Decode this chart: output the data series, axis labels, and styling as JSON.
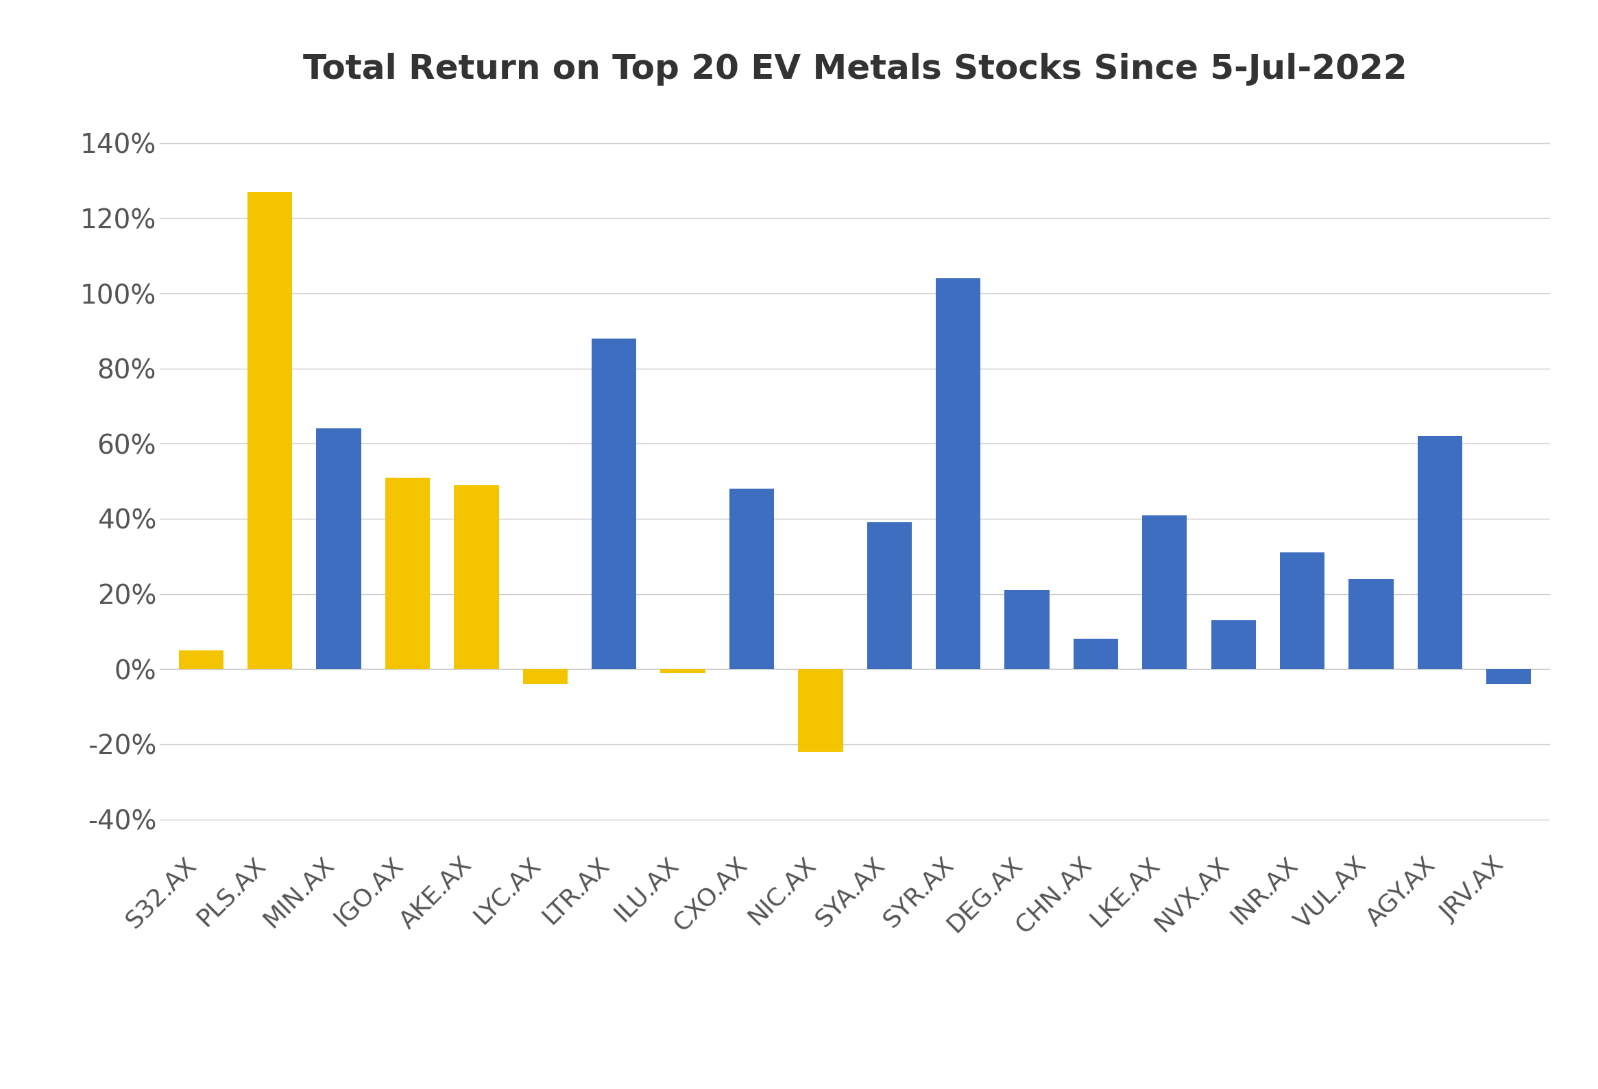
{
  "title": "Total Return on Top 20 EV Metals Stocks Since 5-Jul-2022",
  "categories": [
    "S32.AX",
    "PLS.AX",
    "MIN.AX",
    "IGO.AX",
    "AKE.AX",
    "LYC.AX",
    "LTR.AX",
    "ILU.AX",
    "CXO.AX",
    "NIC.AX",
    "SYA.AX",
    "SYR.AX",
    "DEG.AX",
    "CHN.AX",
    "LKE.AX",
    "NVX.AX",
    "INR.AX",
    "VUL.AX",
    "AGY.AX",
    "JRV.AX"
  ],
  "values": [
    0.05,
    1.27,
    0.64,
    0.51,
    0.49,
    -0.04,
    0.88,
    -0.01,
    0.48,
    -0.22,
    0.39,
    1.04,
    0.21,
    0.08,
    0.41,
    0.13,
    0.31,
    0.24,
    0.62,
    -0.04
  ],
  "colors": [
    "#F5C400",
    "#F5C400",
    "#3D6EBF",
    "#F5C400",
    "#F5C400",
    "#F5C400",
    "#3D6EBF",
    "#F5C400",
    "#3D6EBF",
    "#F5C400",
    "#3D6EBF",
    "#3D6EBF",
    "#3D6EBF",
    "#3D6EBF",
    "#3D6EBF",
    "#3D6EBF",
    "#3D6EBF",
    "#3D6EBF",
    "#3D6EBF",
    "#3D6EBF"
  ],
  "ylim": [
    -0.48,
    1.52
  ],
  "yticks": [
    -0.4,
    -0.2,
    0.0,
    0.2,
    0.4,
    0.6,
    0.8,
    1.0,
    1.2,
    1.4
  ],
  "background_color": "#FFFFFF",
  "title_fontsize": 36,
  "tick_fontsize": 28,
  "xtick_fontsize": 26,
  "grid_color": "#CCCCCC",
  "bar_width": 0.65
}
